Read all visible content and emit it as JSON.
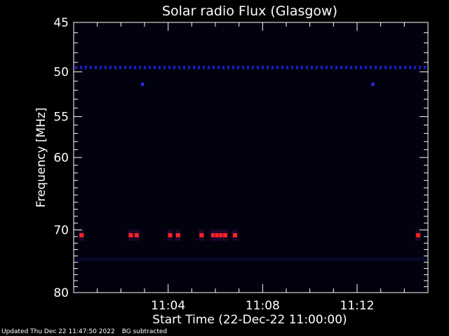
{
  "chart_data": {
    "type": "heatmap",
    "title": "Solar radio Flux (Glasgow)",
    "xlabel": "Start Time (22-Dec-22 11:00:00)",
    "ylabel": "Frequency [MHz]",
    "xlim": [
      "11:00:00",
      "11:15:00"
    ],
    "ylim": [
      45,
      80
    ],
    "yscale": "log",
    "x_ticks": [
      "11:04",
      "11:08",
      "11:12"
    ],
    "y_ticks": [
      45,
      50,
      55,
      60,
      70,
      80
    ],
    "background_color": "#02020e",
    "features": [
      {
        "kind": "persistent-dashed-line",
        "frequency_mhz": 49.5,
        "x_start": "11:00:00",
        "x_end": "11:15:00",
        "color": "#1a1acc"
      },
      {
        "kind": "spot",
        "frequency_mhz": 51.3,
        "time": "11:02:55",
        "color": "#2a2aff"
      },
      {
        "kind": "spot",
        "frequency_mhz": 51.3,
        "time": "11:12:40",
        "color": "#2a2aff"
      },
      {
        "kind": "burst",
        "frequency_mhz": 70.8,
        "times": [
          "11:00:20",
          "11:02:25",
          "11:02:40",
          "11:04:05",
          "11:04:25",
          "11:05:25",
          "11:05:55",
          "11:06:05",
          "11:06:15",
          "11:06:25",
          "11:06:50",
          "11:14:35"
        ],
        "color": "#ff2222"
      },
      {
        "kind": "faint-band",
        "frequency_mhz": 74.5,
        "x_start": "11:00:00",
        "x_end": "11:15:00",
        "color": "#0d0d40"
      }
    ]
  },
  "footer": {
    "updated": "Updated Thu Dec 22 11:47:50 2022",
    "mode": "BG subtracted"
  }
}
